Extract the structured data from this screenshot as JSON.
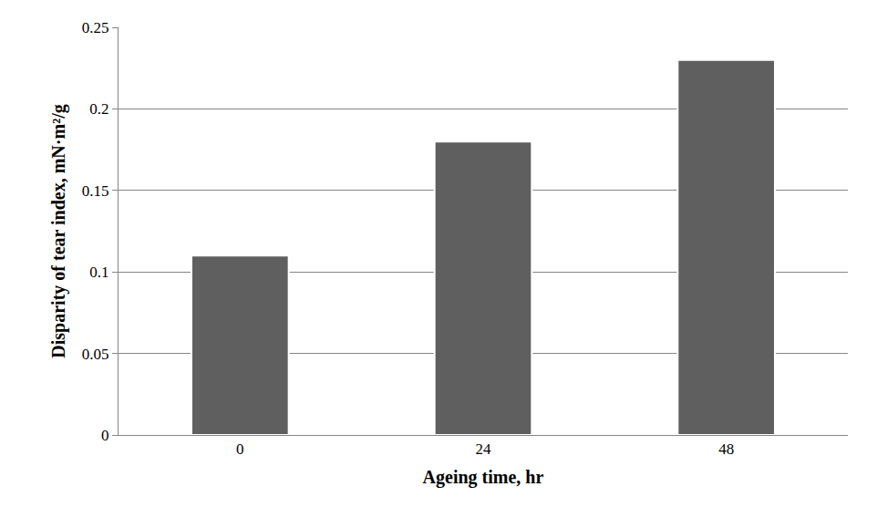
{
  "chart_data": {
    "type": "bar",
    "x_label": "Ageing time, hr",
    "y_label": "Disparity of tear index, mN·m²/g",
    "categories": [
      "0",
      "24",
      "48"
    ],
    "values": [
      0.11,
      0.18,
      0.23
    ],
    "color": "#5f5f5f",
    "ylim": [
      0,
      0.25
    ],
    "yticks": [
      0,
      0.05,
      0.1,
      0.15,
      0.2,
      0.25
    ],
    "grid": true
  }
}
